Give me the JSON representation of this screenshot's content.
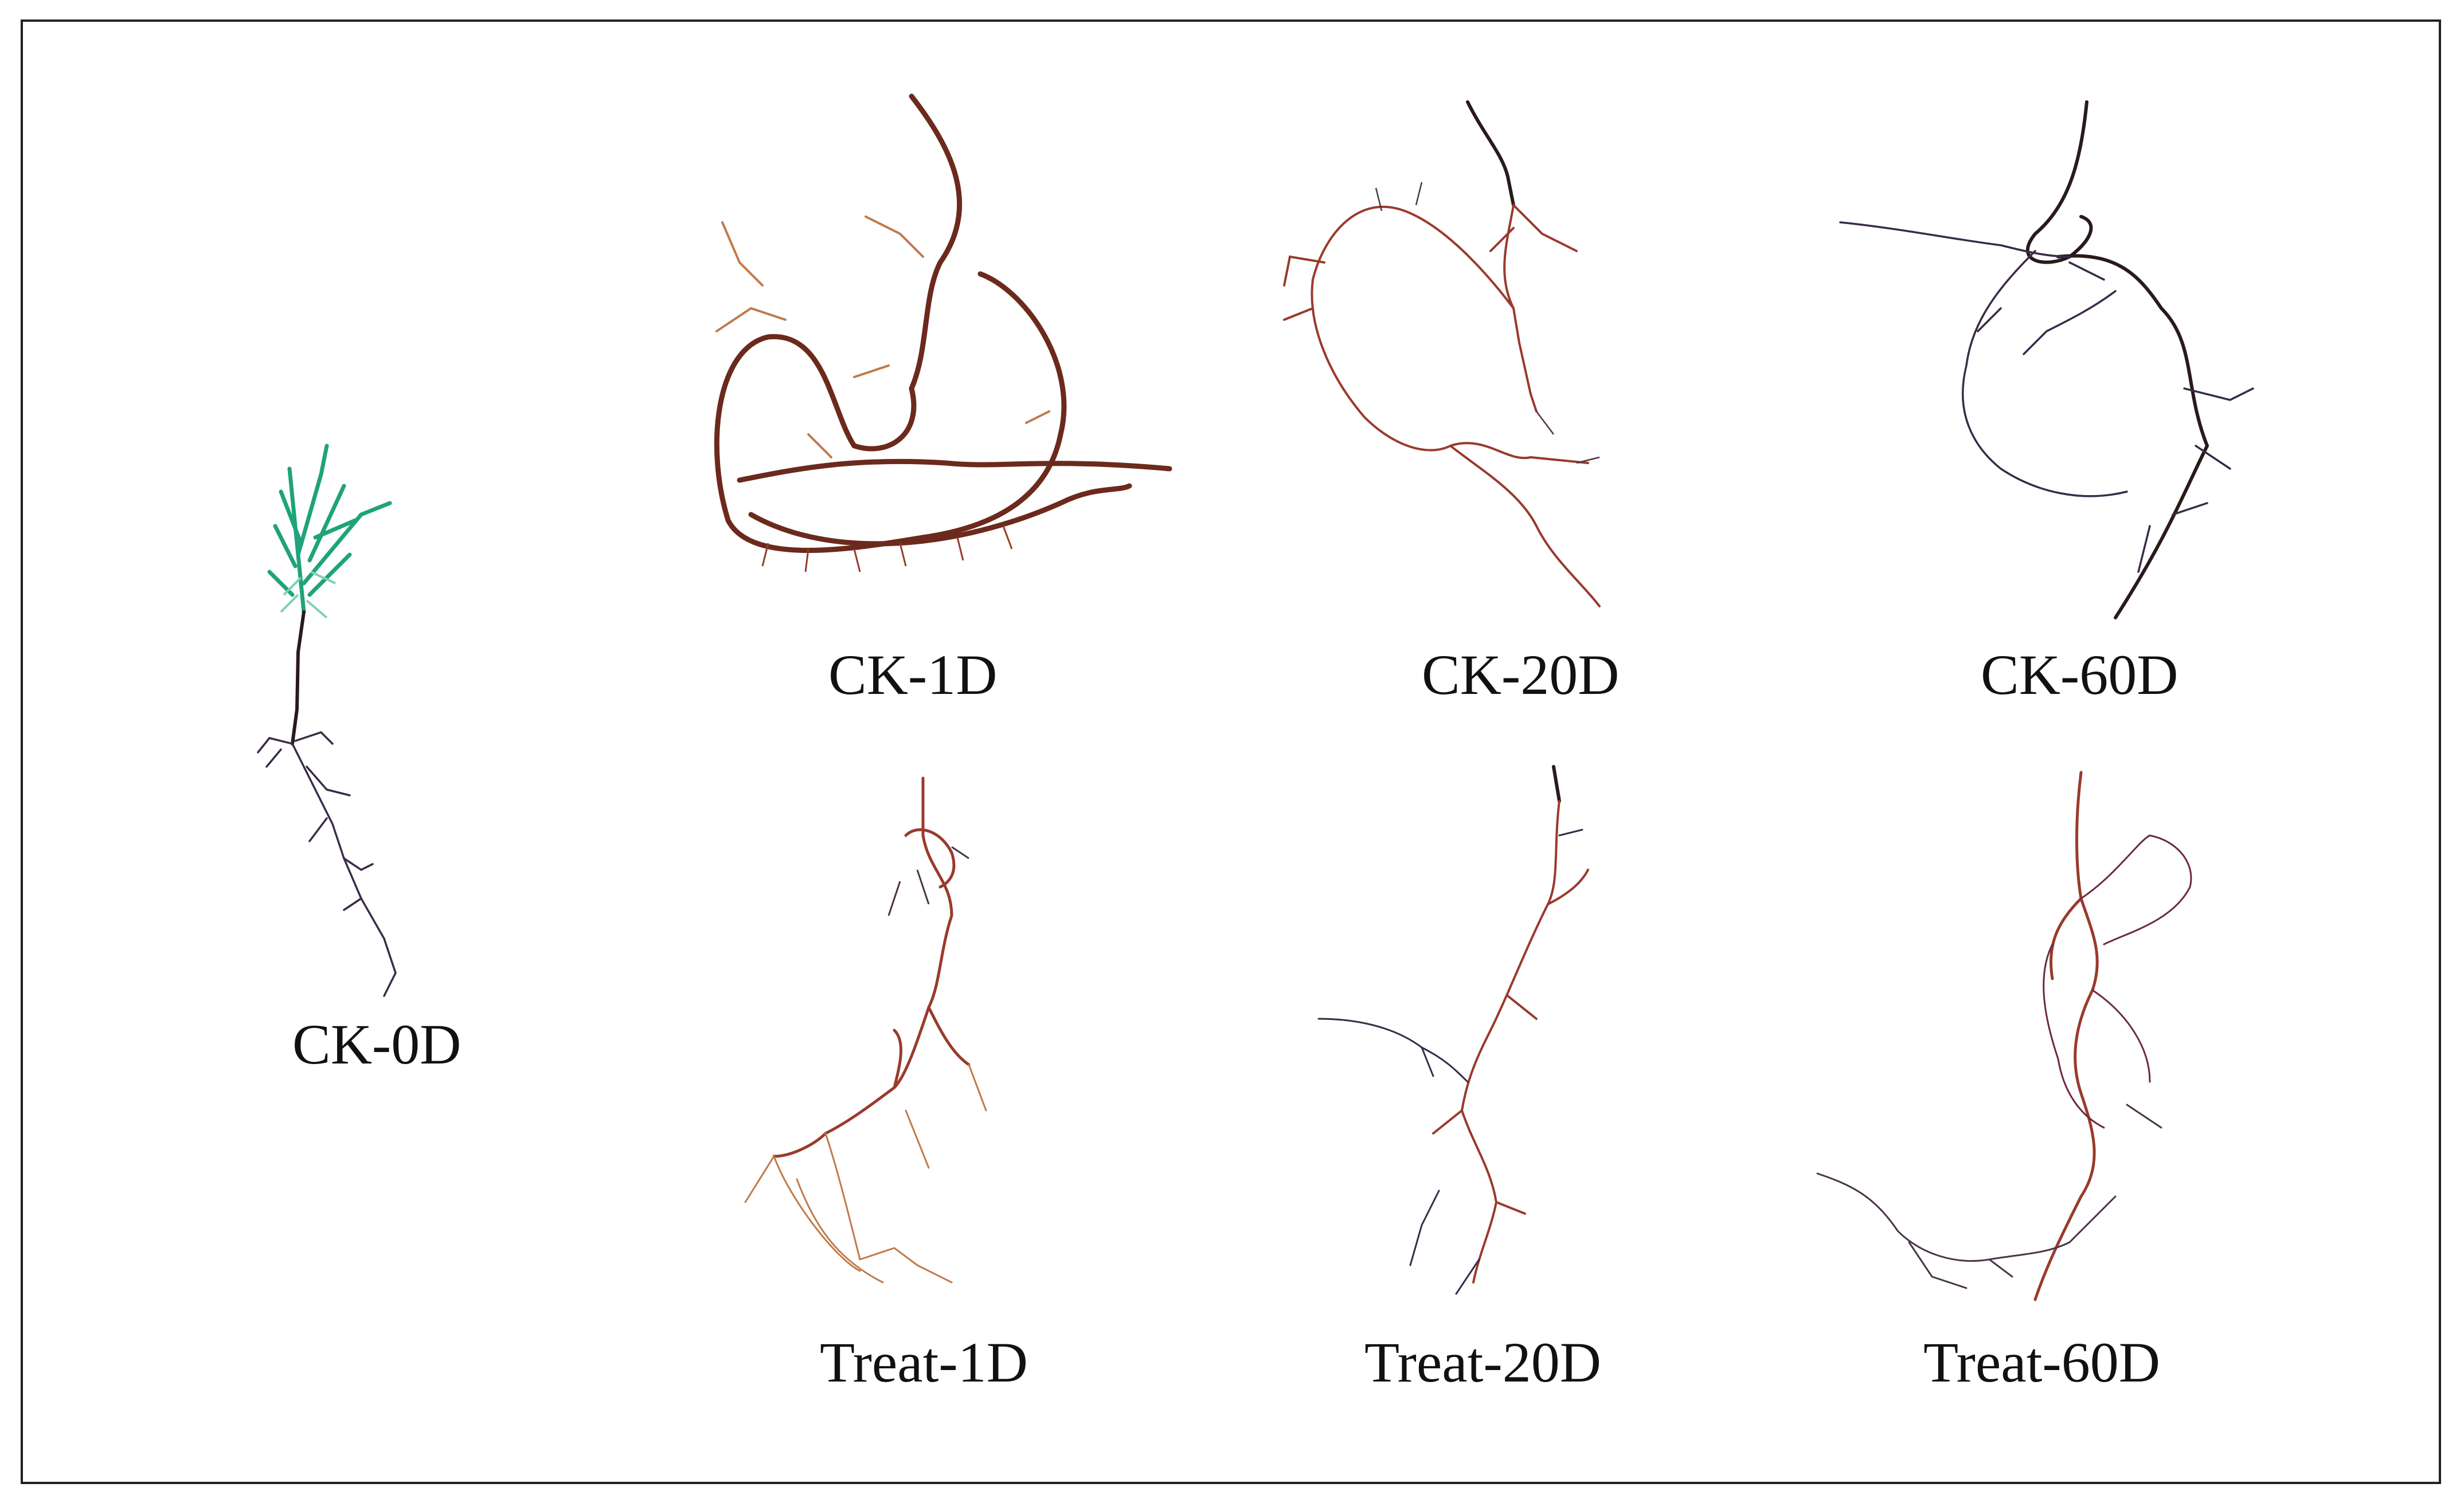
{
  "figure": {
    "panels": [
      {
        "id": "ck-0d",
        "label": "CK-0D"
      },
      {
        "id": "ck-1d",
        "label": "CK-1D"
      },
      {
        "id": "ck-20d",
        "label": "CK-20D"
      },
      {
        "id": "ck-60d",
        "label": "CK-60D"
      },
      {
        "id": "treat-1d",
        "label": "Treat-1D"
      },
      {
        "id": "treat-20d",
        "label": "Treat-20D"
      },
      {
        "id": "treat-60d",
        "label": "Treat-60D"
      }
    ]
  },
  "colors": {
    "frame": "#222222",
    "root_dark": "#2a1a1c",
    "root_brown": "#6b2a1c",
    "root_red": "#9a3a2c",
    "root_orange": "#c07a4a",
    "root_purple": "#4a3548",
    "shoot_green": "#1fa37a"
  }
}
